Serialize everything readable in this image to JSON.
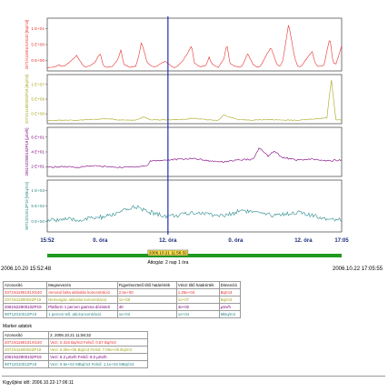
{
  "chart_data": [
    {
      "type": "line",
      "ylabel": "2071N1190101XG40 [Bq/m3]",
      "ticks": [
        "1 E+01",
        "5 E+00",
        "0 E+00"
      ],
      "ylim": [
        -0.5,
        13
      ],
      "color": "#e83030",
      "series": [
        {
          "x": [
            0,
            0.02,
            0.04,
            0.05,
            0.06,
            0.08,
            0.1,
            0.12,
            0.13,
            0.14,
            0.16,
            0.18,
            0.19,
            0.2,
            0.22,
            0.24,
            0.25,
            0.26,
            0.28,
            0.3,
            0.31,
            0.32,
            0.34,
            0.36,
            0.37,
            0.38,
            0.4,
            0.42,
            0.43,
            0.44,
            0.46,
            0.48,
            0.49,
            0.5,
            0.52,
            0.54,
            0.55,
            0.56,
            0.58,
            0.6,
            0.61,
            0.62,
            0.64,
            0.66,
            0.67,
            0.68,
            0.7,
            0.72,
            0.73,
            0.74,
            0.76,
            0.78,
            0.79,
            0.8,
            0.82,
            0.84,
            0.85,
            0.86,
            0.88,
            0.9,
            0.91,
            0.92,
            0.94,
            0.96,
            0.97,
            0.98,
            1
          ],
          "y": [
            0.3,
            0.5,
            1.0,
            0.6,
            0.8,
            2.0,
            3.5,
            1.0,
            0.5,
            0.6,
            1.5,
            4.0,
            1.0,
            0.4,
            0.6,
            2.5,
            5.0,
            1.2,
            0.5,
            0.7,
            3.0,
            7.0,
            1.5,
            0.5,
            0.6,
            1.2,
            2.0,
            0.8,
            0.4,
            0.6,
            2.0,
            4.5,
            6.0,
            1.5,
            0.5,
            1.0,
            3.0,
            1.2,
            0.4,
            2.5,
            6.5,
            1.5,
            0.6,
            0.5,
            2.0,
            4.0,
            1.0,
            0.4,
            1.5,
            3.0,
            5.5,
            1.2,
            0.6,
            2.0,
            11.5,
            3.0,
            0.8,
            0.5,
            2.5,
            4.5,
            1.5,
            0.6,
            1.0,
            8.0,
            2.0,
            1.0,
            6.0
          ]
        }
      ]
    },
    {
      "type": "line",
      "ylabel": "2071N1190002ZP19 [Bq/m3]",
      "ticks": [
        "1 E+07",
        "5 E+06",
        "0 E+00"
      ],
      "ylim": [
        -300000,
        10500000
      ],
      "color": "#a6a51a",
      "series": [
        {
          "x": [
            0,
            0.05,
            0.1,
            0.15,
            0.2,
            0.25,
            0.3,
            0.33,
            0.35,
            0.4,
            0.45,
            0.5,
            0.55,
            0.58,
            0.6,
            0.65,
            0.7,
            0.75,
            0.8,
            0.85,
            0.9,
            0.95,
            0.965,
            0.98,
            1
          ],
          "y": [
            400000,
            500000,
            450000,
            600000,
            800000,
            500000,
            450000,
            1200000,
            550000,
            500000,
            600000,
            900000,
            500000,
            450000,
            1600000,
            550000,
            500000,
            600000,
            500000,
            450000,
            700000,
            1000000,
            9500000,
            600000,
            500000
          ]
        }
      ]
    },
    {
      "type": "line",
      "ylabel": "2061N2290010ZP19 [µSv/h]",
      "ticks": [
        "6 E+01",
        "4 E+01",
        "2 E+01"
      ],
      "ylim": [
        10,
        70
      ],
      "color": "#800080",
      "series": [
        {
          "x": [
            0,
            0.05,
            0.1,
            0.15,
            0.2,
            0.25,
            0.3,
            0.34,
            0.35,
            0.4,
            0.45,
            0.5,
            0.55,
            0.6,
            0.65,
            0.7,
            0.72,
            0.75,
            0.77,
            0.8,
            0.85,
            0.9,
            0.95,
            1
          ],
          "y": [
            21,
            22,
            21,
            23,
            22,
            21,
            22,
            23,
            29,
            30,
            31,
            32,
            29,
            28,
            30,
            31,
            45,
            35,
            41,
            33,
            30,
            31,
            29,
            30
          ]
        }
      ]
    },
    {
      "type": "line",
      "ylabel": "98T1201001ZP19 [MBq/m3]",
      "ticks": [
        "1 E+03",
        "5 E+02",
        "0 E+00"
      ],
      "ylim": [
        -150,
        1250
      ],
      "color": "#2e8b8b",
      "series": [
        {
          "x": [
            0,
            0.05,
            0.1,
            0.15,
            0.2,
            0.25,
            0.28,
            0.3,
            0.32,
            0.35,
            0.38,
            0.4,
            0.45,
            0.5,
            0.55,
            0.6,
            0.63,
            0.66,
            0.7,
            0.75,
            0.8,
            0.85,
            0.88,
            0.9,
            0.95,
            1
          ],
          "y": [
            150,
            200,
            160,
            220,
            260,
            380,
            480,
            550,
            450,
            380,
            320,
            280,
            300,
            380,
            330,
            280,
            350,
            450,
            380,
            300,
            330,
            380,
            320,
            280,
            220,
            180
          ]
        }
      ]
    }
  ],
  "x_axis": {
    "ticks": [
      "15:52",
      "0. óra",
      "12. óra",
      "0. óra",
      "12. óra",
      "17:05"
    ]
  },
  "cursor": {
    "label": "2006.10.21 11:56:32"
  },
  "range": {
    "label": "Áttogás: 2 nap 1 óra",
    "start": "2006.10.20 15:52:48",
    "end": "2006.10.22 17:05:55"
  },
  "detector_table": {
    "headers": [
      "Azonosító",
      "Megnevezés",
      "Figyelmeztető tiltő határérték",
      "Vészi tiltő határérték",
      "Dimenzió"
    ],
    "rows": [
      {
        "id": "2071N1190101XG40",
        "name": "Aerosol béta aktivitás koncentráció",
        "warn": "2.5e+00",
        "alarm": "1.25e+04",
        "unit": "Bq/m3",
        "color": "#e83030"
      },
      {
        "id": "2071N1190002ZP19",
        "name": "Nemesgáz aktivitás koncentráció",
        "warn": "1e+08",
        "alarm": "1e+07",
        "unit": "Bq/m3",
        "color": "#a6a51a"
      },
      {
        "id": "2061N2290010ZP19",
        "name": "Platform 1 percen gamma dózisteli",
        "warn": "40",
        "alarm": "4e+02",
        "unit": "µSv/h",
        "color": "#800080"
      },
      {
        "id": "98T1201001ZP19",
        "name": "1 percen tell. akt.koncentráció",
        "warn": "1e+03",
        "alarm": "1e+04",
        "unit": "MBq/m3",
        "color": "#2e8b8b"
      }
    ]
  },
  "marker": {
    "title": "Marker adatok",
    "headers": [
      "Azonosító",
      "2. 2006.10.21 11:56:32"
    ],
    "rows": [
      {
        "id": "2071N1190101XG40",
        "value": "Vezi:   0.316 Bq/m3 Felső:   0.57 Bq/m3",
        "color": "#e83030"
      },
      {
        "id": "2071N1190002ZP19",
        "value": "Vezi: 5.06e+05 Bq/m3 Felső: 7.06e+05 Bq/m3",
        "color": "#a6a51a"
      },
      {
        "id": "2061N2290010ZP19",
        "value": "Vezi:   6.2 µSv/h Felső:   8.0 µSv/h",
        "color": "#800080"
      },
      {
        "id": "98T1201001ZP19",
        "value": "Vezi: 9.5e+02 MBq/m3 Felső: 1.1e+03 MBq/m3",
        "color": "#2e8b8b"
      }
    ]
  },
  "footer": "Kigyűjtési idő: 2006.10.22-17:06:11"
}
